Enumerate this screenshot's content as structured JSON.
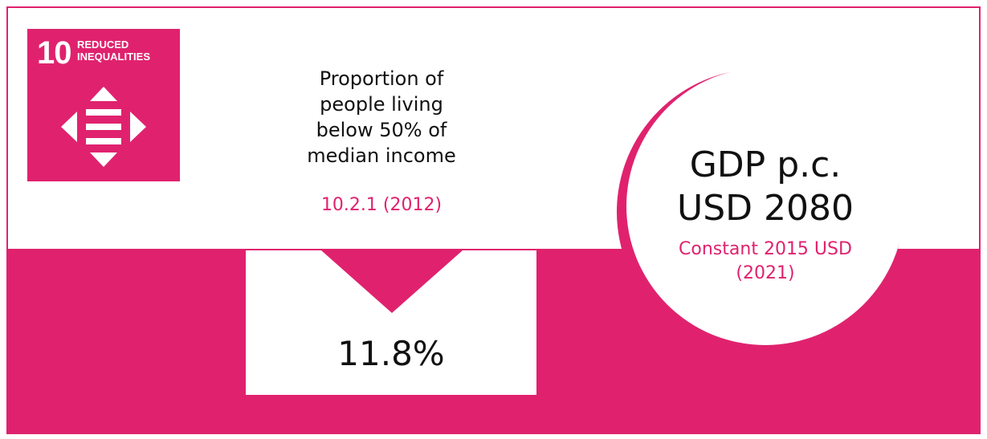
{
  "colors": {
    "accent": "#e0226e",
    "background": "#ffffff",
    "text": "#111111"
  },
  "sdg": {
    "number": "10",
    "name_line1": "REDUCED",
    "name_line2": "INEQUALITIES",
    "icon": "reduced-inequalities-icon"
  },
  "indicator": {
    "title_line1": "Proportion of",
    "title_line2": "people living",
    "title_line3": "below 50% of",
    "title_line4": "median income",
    "code": "10.2.1 (2012)",
    "value": "11.8%",
    "trend_icon": "down-arrow-icon"
  },
  "gdp": {
    "label": "GDP p.c.",
    "value": "USD 2080",
    "unit": "Constant 2015 USD",
    "year": "(2021)"
  }
}
